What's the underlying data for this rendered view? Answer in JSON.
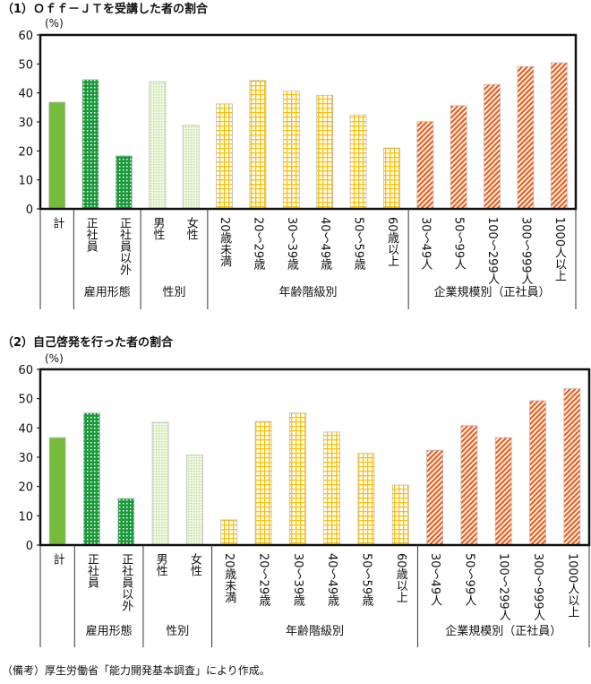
{
  "footer": "（備考）厚生労働省「能力開発基本調査」により作成。",
  "colors": {
    "total": "#76bc3c",
    "employment": "#1a9a3a",
    "gender": "#b5d98a",
    "age": "#ffc000",
    "company": "#f05a14"
  },
  "chart_data": [
    {
      "type": "bar",
      "title": "（1）Ｏｆｆ－ＪＴを受講した者の割合",
      "ylabel": "(%)",
      "ylim": [
        0,
        60
      ],
      "yticks": [
        "0",
        "10",
        "20",
        "30",
        "40",
        "50",
        "60"
      ],
      "categories": [
        "計",
        "正社員",
        "正社員以外",
        "男性",
        "女性",
        "20歳未満",
        "20～29歳",
        "30～39歳",
        "40～49歳",
        "50～59歳",
        "60歳以上",
        "30～49人",
        "50～99人",
        "100～299人",
        "300～999人",
        "1000人以上"
      ],
      "values": [
        36.8,
        44.6,
        18.3,
        43.9,
        28.8,
        36.2,
        44.3,
        40.6,
        39.2,
        32.4,
        21.0,
        30.1,
        35.6,
        42.9,
        49.1,
        50.4
      ],
      "groups": [
        {
          "label": "",
          "count": 1,
          "pattern": "total"
        },
        {
          "label": "雇用形態",
          "count": 2,
          "pattern": "employment"
        },
        {
          "label": "性別",
          "count": 2,
          "pattern": "gender"
        },
        {
          "label": "年齢階級別",
          "count": 6,
          "pattern": "age"
        },
        {
          "label": "企業規模別（正社員）",
          "count": 5,
          "pattern": "company"
        }
      ],
      "grid": false
    },
    {
      "type": "bar",
      "title": "（2）自己啓発を行った者の割合",
      "ylabel": "(%)",
      "ylim": [
        0,
        60
      ],
      "yticks": [
        "0",
        "10",
        "20",
        "30",
        "40",
        "50",
        "60"
      ],
      "categories": [
        "計",
        "正社員",
        "正社員以外",
        "男性",
        "女性",
        "20歳未満",
        "20～29歳",
        "30～39歳",
        "40～49歳",
        "50～59歳",
        "60歳以上",
        "30～49人",
        "50～99人",
        "100～299人",
        "300～999人",
        "1000人以上"
      ],
      "values": [
        36.7,
        45.1,
        15.9,
        41.9,
        30.7,
        8.6,
        42.2,
        45.1,
        38.6,
        31.3,
        20.5,
        32.4,
        40.8,
        36.7,
        49.3,
        53.4
      ],
      "groups": [
        {
          "label": "",
          "count": 1,
          "pattern": "total"
        },
        {
          "label": "雇用形態",
          "count": 2,
          "pattern": "employment"
        },
        {
          "label": "性別",
          "count": 2,
          "pattern": "gender"
        },
        {
          "label": "年齢階級別",
          "count": 6,
          "pattern": "age"
        },
        {
          "label": "企業規模別（正社員）",
          "count": 5,
          "pattern": "company"
        }
      ],
      "grid": false
    }
  ]
}
